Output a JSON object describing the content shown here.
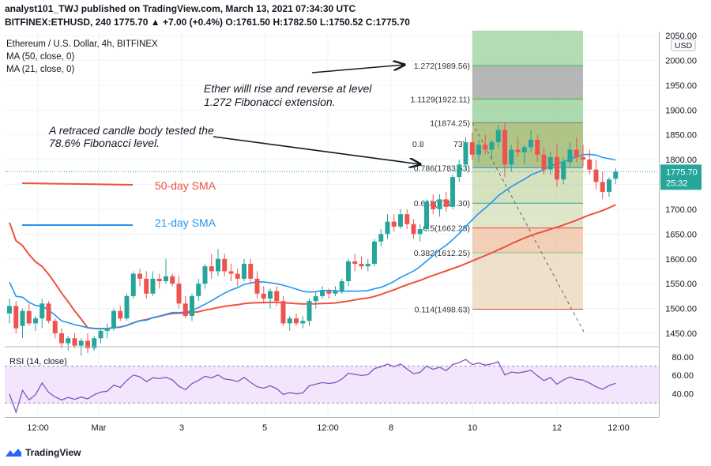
{
  "header": {
    "published": "analyst101_TWJ published on TradingView.com, March 13, 2021 07:34:30 UTC",
    "symbol": "BITFINEX:ETHUSD, 240",
    "change": "1775.70 ▲ +7.00 (+0.4%)",
    "o_label": "O:",
    "o": "1761.50",
    "h_label": "H:",
    "h": "1782.50",
    "l_label": "L:",
    "l": "1750.52",
    "c_label": "C:",
    "c": "1775.70"
  },
  "legend": {
    "title": "Ethereum / U.S. Dollar, 4h, BITFINEX",
    "ma50": "MA (50, close, 0)",
    "ma21": "MA (21, close, 0)"
  },
  "annotations": {
    "ether_rise": [
      "Ether willl rise and reverse at level",
      "1.272 Fibonacci extension."
    ],
    "retraced": [
      "A retraced candle body  tested the",
      "78.6% Fibonacci level."
    ],
    "sma50": "50-day SMA",
    "sma21": "21-day SMA"
  },
  "price_axis": {
    "unit": "USD",
    "ticks": [
      "2050.00",
      "2000.00",
      "1950.00",
      "1900.00",
      "1850.00",
      "1800.00",
      "1700.00",
      "1650.00",
      "1600.00",
      "1550.00",
      "1500.00",
      "1450.00"
    ],
    "last_price": "1775.70",
    "countdown": "25:32"
  },
  "rsi": {
    "label": "RSI (14, close)",
    "ticks": [
      "80.00",
      "60.00",
      "40.00"
    ]
  },
  "time_axis": {
    "labels": [
      "12:00",
      "Mar",
      "3",
      "5",
      "12:00",
      "8",
      "10",
      "12",
      "12:00"
    ]
  },
  "footer": {
    "brand": "TradingView"
  },
  "colors": {
    "up": "#26a69a",
    "down": "#ef5350",
    "ma50": "#f0503c",
    "ma21": "#2196f3",
    "rsi_line": "#7e57c2",
    "rsi_fill": "#f3e5fb"
  },
  "chart_data": {
    "type": "candlestick",
    "symbol": "BITFINEX:ETHUSD",
    "timeframe": "4h",
    "price_range": [
      1430,
      2060
    ],
    "fibonacci": [
      {
        "ratio": "1.272",
        "price": 1989.56,
        "text": "1.272(1989.56)"
      },
      {
        "ratio": "1.1129",
        "price": 1922.11,
        "text": "1.1129(1922.11)"
      },
      {
        "ratio": "1",
        "price": 1874.25,
        "text": "1(1874.25)"
      },
      {
        "ratio": "0.786",
        "price": 1783.53,
        "text": "0.786(1783.53)"
      },
      {
        "ratio": "0.618",
        "price": 1712.3,
        "text": "0.618(1712.30)"
      },
      {
        "ratio": "0.5",
        "price": 1662.28,
        "text": "0.5(1662.28)"
      },
      {
        "ratio": "0.382",
        "price": 1612.25,
        "text": "0.382(1612.25)"
      },
      {
        "ratio": "0.114",
        "price": 1498.63,
        "text": "0.114(1498.63)"
      }
    ],
    "fib_partial": [
      {
        "price": 1832,
        "text": "0.8"
      },
      {
        "price": 1832,
        "text": "73)"
      }
    ],
    "candles": [
      [
        1490,
        1520,
        1470,
        1505
      ],
      [
        1505,
        1515,
        1450,
        1460
      ],
      [
        1465,
        1500,
        1440,
        1495
      ],
      [
        1495,
        1510,
        1465,
        1470
      ],
      [
        1470,
        1485,
        1455,
        1480
      ],
      [
        1480,
        1520,
        1460,
        1510
      ],
      [
        1510,
        1515,
        1470,
        1475
      ],
      [
        1475,
        1480,
        1440,
        1450
      ],
      [
        1450,
        1460,
        1420,
        1430
      ],
      [
        1430,
        1445,
        1415,
        1440
      ],
      [
        1440,
        1450,
        1420,
        1425
      ],
      [
        1425,
        1440,
        1405,
        1435
      ],
      [
        1435,
        1450,
        1410,
        1420
      ],
      [
        1420,
        1445,
        1415,
        1440
      ],
      [
        1440,
        1460,
        1430,
        1455
      ],
      [
        1455,
        1470,
        1440,
        1460
      ],
      [
        1460,
        1500,
        1455,
        1495
      ],
      [
        1495,
        1505,
        1475,
        1480
      ],
      [
        1480,
        1530,
        1475,
        1525
      ],
      [
        1525,
        1575,
        1520,
        1570
      ],
      [
        1570,
        1580,
        1545,
        1560
      ],
      [
        1560,
        1575,
        1520,
        1530
      ],
      [
        1530,
        1575,
        1525,
        1560
      ],
      [
        1560,
        1570,
        1540,
        1555
      ],
      [
        1555,
        1600,
        1550,
        1565
      ],
      [
        1565,
        1570,
        1545,
        1550
      ],
      [
        1550,
        1565,
        1500,
        1510
      ],
      [
        1510,
        1525,
        1480,
        1485
      ],
      [
        1485,
        1530,
        1475,
        1525
      ],
      [
        1525,
        1560,
        1515,
        1550
      ],
      [
        1550,
        1590,
        1540,
        1585
      ],
      [
        1585,
        1610,
        1560,
        1575
      ],
      [
        1575,
        1620,
        1565,
        1600
      ],
      [
        1600,
        1610,
        1565,
        1575
      ],
      [
        1575,
        1590,
        1555,
        1570
      ],
      [
        1570,
        1580,
        1545,
        1560
      ],
      [
        1560,
        1600,
        1555,
        1590
      ],
      [
        1590,
        1600,
        1550,
        1560
      ],
      [
        1560,
        1575,
        1520,
        1530
      ],
      [
        1530,
        1545,
        1510,
        1520
      ],
      [
        1520,
        1540,
        1500,
        1535
      ],
      [
        1535,
        1545,
        1505,
        1515
      ],
      [
        1515,
        1525,
        1465,
        1470
      ],
      [
        1470,
        1485,
        1455,
        1480
      ],
      [
        1480,
        1490,
        1465,
        1470
      ],
      [
        1470,
        1485,
        1460,
        1475
      ],
      [
        1475,
        1520,
        1465,
        1515
      ],
      [
        1515,
        1535,
        1500,
        1525
      ],
      [
        1525,
        1545,
        1520,
        1535
      ],
      [
        1535,
        1540,
        1520,
        1530
      ],
      [
        1530,
        1545,
        1525,
        1535
      ],
      [
        1535,
        1560,
        1530,
        1555
      ],
      [
        1555,
        1600,
        1545,
        1595
      ],
      [
        1595,
        1610,
        1575,
        1590
      ],
      [
        1590,
        1605,
        1580,
        1585
      ],
      [
        1585,
        1600,
        1575,
        1590
      ],
      [
        1590,
        1640,
        1585,
        1635
      ],
      [
        1635,
        1660,
        1625,
        1650
      ],
      [
        1650,
        1690,
        1640,
        1675
      ],
      [
        1675,
        1690,
        1655,
        1665
      ],
      [
        1665,
        1700,
        1660,
        1690
      ],
      [
        1690,
        1700,
        1660,
        1670
      ],
      [
        1670,
        1680,
        1640,
        1650
      ],
      [
        1650,
        1670,
        1635,
        1660
      ],
      [
        1660,
        1720,
        1655,
        1715
      ],
      [
        1715,
        1730,
        1690,
        1700
      ],
      [
        1700,
        1730,
        1685,
        1720
      ],
      [
        1720,
        1735,
        1695,
        1705
      ],
      [
        1705,
        1770,
        1700,
        1765
      ],
      [
        1765,
        1800,
        1755,
        1790
      ],
      [
        1790,
        1845,
        1780,
        1835
      ],
      [
        1835,
        1855,
        1800,
        1810
      ],
      [
        1810,
        1840,
        1795,
        1830
      ],
      [
        1830,
        1850,
        1810,
        1820
      ],
      [
        1820,
        1840,
        1800,
        1835
      ],
      [
        1835,
        1870,
        1825,
        1860
      ],
      [
        1860,
        1875,
        1765,
        1790
      ],
      [
        1790,
        1830,
        1775,
        1820
      ],
      [
        1820,
        1845,
        1805,
        1815
      ],
      [
        1815,
        1830,
        1790,
        1825
      ],
      [
        1825,
        1860,
        1815,
        1840
      ],
      [
        1840,
        1850,
        1795,
        1810
      ],
      [
        1810,
        1825,
        1770,
        1780
      ],
      [
        1780,
        1815,
        1770,
        1805
      ],
      [
        1805,
        1830,
        1745,
        1760
      ],
      [
        1760,
        1805,
        1750,
        1795
      ],
      [
        1795,
        1835,
        1785,
        1820
      ],
      [
        1820,
        1845,
        1795,
        1805
      ],
      [
        1805,
        1830,
        1785,
        1800
      ],
      [
        1800,
        1820,
        1770,
        1780
      ],
      [
        1780,
        1800,
        1740,
        1755
      ],
      [
        1755,
        1775,
        1720,
        1735
      ],
      [
        1735,
        1765,
        1725,
        1760
      ],
      [
        1761.5,
        1782.5,
        1750.52,
        1775.7
      ]
    ]
  }
}
